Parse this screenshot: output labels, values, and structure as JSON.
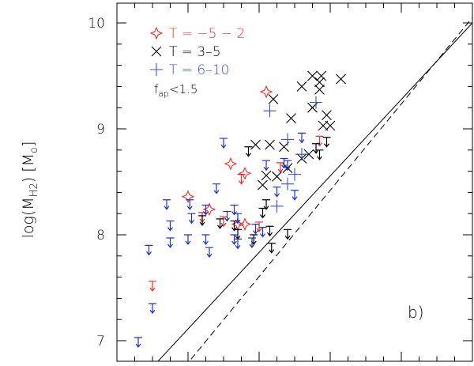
{
  "chart_data": {
    "type": "scatter",
    "ylabel": "log(M",
    "ylabel_sub": "H2",
    "ylabel_unit_open": ") [M",
    "ylabel_unit_sub": "o",
    "ylabel_unit_close": "]",
    "panel_label": "b)",
    "ylim": [
      6.75,
      10.2
    ],
    "xlim": [
      0,
      1
    ],
    "y_major_ticks": [
      7,
      8,
      9,
      10
    ],
    "y_tick_labels": [
      "7",
      "8",
      "9",
      "10"
    ],
    "legend_position": "top-left",
    "legend": [
      {
        "label": "T = −5 − 2",
        "marker": "star",
        "color": "#e8312f"
      },
      {
        "label": "T = 3–5",
        "marker": "cross",
        "color": "#000000"
      },
      {
        "label": "T = 6–10",
        "marker": "plus",
        "color": "#3a4fc4"
      }
    ],
    "annotation": {
      "text_f": "f",
      "text_sub": "ap",
      "text_rest": "<1.5"
    },
    "fit_lines": [
      {
        "style": "solid",
        "points": [
          [
            0.1,
            6.75
          ],
          [
            1.0,
            10.0
          ]
        ]
      },
      {
        "style": "dashed",
        "points": [
          [
            0.19,
            6.75
          ],
          [
            1.0,
            10.05
          ]
        ]
      }
    ],
    "series": [
      {
        "name": "T = −5 − 2",
        "marker": "star",
        "color": "#e8312f",
        "points": [
          [
            0.42,
            9.35
          ],
          [
            0.32,
            8.67
          ],
          [
            0.2,
            8.36
          ],
          [
            0.26,
            8.24
          ],
          [
            0.36,
            8.58
          ],
          [
            0.34,
            8.1
          ],
          [
            0.36,
            8.1
          ]
        ]
      },
      {
        "name": "T = 3–5",
        "marker": "cross",
        "color": "#000000",
        "points": [
          [
            0.44,
            9.28
          ],
          [
            0.39,
            8.85
          ],
          [
            0.43,
            8.85
          ],
          [
            0.47,
            8.83
          ],
          [
            0.49,
            9.1
          ],
          [
            0.52,
            9.4
          ],
          [
            0.55,
            9.5
          ],
          [
            0.57,
            9.44
          ],
          [
            0.575,
            9.5
          ],
          [
            0.57,
            9.37
          ],
          [
            0.55,
            9.2
          ],
          [
            0.63,
            9.47
          ],
          [
            0.59,
            9.13
          ],
          [
            0.6,
            9.03
          ],
          [
            0.58,
            9.03
          ],
          [
            0.54,
            8.76
          ],
          [
            0.52,
            8.72
          ],
          [
            0.48,
            8.63
          ],
          [
            0.45,
            8.55
          ],
          [
            0.42,
            8.56
          ],
          [
            0.41,
            8.47
          ]
        ]
      },
      {
        "name": "T = 6–10",
        "marker": "plus",
        "color": "#3a4fc4",
        "points": [
          [
            0.43,
            9.17
          ],
          [
            0.56,
            9.25
          ],
          [
            0.48,
            8.9
          ],
          [
            0.52,
            8.76
          ],
          [
            0.5,
            8.57
          ],
          [
            0.48,
            8.48
          ],
          [
            0.45,
            8.27
          ]
        ]
      },
      {
        "name": "",
        "marker": "upper-limit",
        "color": "#e8312f",
        "points": [
          [
            0.1,
            7.56
          ],
          [
            0.46,
            8.68
          ],
          [
            0.57,
            8.93
          ],
          [
            0.24,
            8.21
          ],
          [
            0.3,
            8.17
          ],
          [
            0.4,
            8.12
          ],
          [
            0.35,
            8.57
          ]
        ]
      },
      {
        "name": "",
        "marker": "upper-limit",
        "color": "#000000",
        "points": [
          [
            0.37,
            8.83
          ],
          [
            0.24,
            8.18
          ],
          [
            0.33,
            8.13
          ],
          [
            0.29,
            8.15
          ],
          [
            0.34,
            8.05
          ],
          [
            0.385,
            8.0
          ],
          [
            0.41,
            8.25
          ],
          [
            0.43,
            8.08
          ],
          [
            0.48,
            8.05
          ],
          [
            0.435,
            7.92
          ],
          [
            0.42,
            8.33
          ],
          [
            0.56,
            8.86
          ],
          [
            0.57,
            8.8
          ],
          [
            0.59,
            8.92
          ]
        ]
      },
      {
        "name": "",
        "marker": "upper-limit",
        "color": "#2233bb",
        "points": [
          [
            0.09,
            7.9
          ],
          [
            0.1,
            7.35
          ],
          [
            0.06,
            7.03
          ],
          [
            0.14,
            8.33
          ],
          [
            0.15,
            8.13
          ],
          [
            0.15,
            7.97
          ],
          [
            0.2,
            8.0
          ],
          [
            0.205,
            8.33
          ],
          [
            0.21,
            8.2
          ],
          [
            0.25,
            8.28
          ],
          [
            0.28,
            8.48
          ],
          [
            0.3,
            8.91
          ],
          [
            0.31,
            8.22
          ],
          [
            0.33,
            8.28
          ],
          [
            0.34,
            8.2
          ],
          [
            0.25,
            8.0
          ],
          [
            0.26,
            7.88
          ],
          [
            0.33,
            8.0
          ],
          [
            0.34,
            7.96
          ],
          [
            0.38,
            7.97
          ],
          [
            0.39,
            8.1
          ],
          [
            0.41,
            8.07
          ],
          [
            0.45,
            8.45
          ],
          [
            0.47,
            8.72
          ],
          [
            0.5,
            8.42
          ],
          [
            0.52,
            8.96
          ],
          [
            0.48,
            8.7
          ],
          [
            0.42,
            8.7
          ]
        ]
      }
    ]
  }
}
